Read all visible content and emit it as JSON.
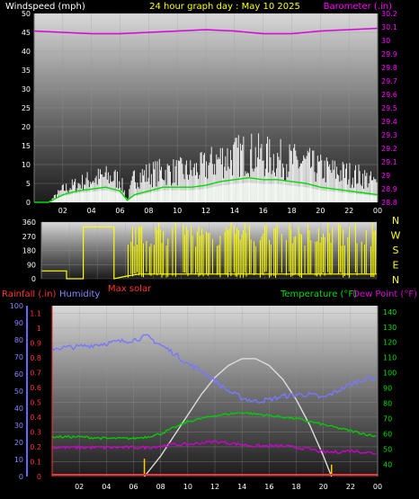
{
  "header": {
    "left_label": "Windspeed (mph)",
    "center_label": "24 hour graph day : May 10 2025",
    "right_label": "Barometer (.in)"
  },
  "colors": {
    "wind": "#ffffff",
    "gust": "#ffffff",
    "wind_avg": "#00dd00",
    "wind_fill": "#cceecc",
    "barometer": "#dd00dd",
    "direction": "#ffff00",
    "solar_max": "#ff3333",
    "rain_axis": "#ff3333",
    "humidity": "#7777ff",
    "temperature": "#00cc00",
    "dewpoint": "#cc00cc",
    "solar": "#dddddd",
    "compass_text": "#ffff00",
    "label_yellow": "#ffff00",
    "tick_text": "#ffffff"
  },
  "chart_data": [
    {
      "type": "line",
      "name": "wind-barometer",
      "x_ticks": [
        "02",
        "04",
        "06",
        "08",
        "10",
        "12",
        "14",
        "16",
        "18",
        "20",
        "22",
        "00"
      ],
      "ylim_left": [
        0,
        50
      ],
      "yticks_left": [
        "0",
        "5",
        "10",
        "15",
        "20",
        "25",
        "30",
        "35",
        "40",
        "45",
        "50"
      ],
      "ylim_right": [
        28.8,
        30.2
      ],
      "yticks_right": [
        "28.8",
        "28.9",
        "29",
        "29.1",
        "29.2",
        "29.3",
        "29.4",
        "29.5",
        "29.6",
        "29.7",
        "29.8",
        "29.9",
        "30",
        "30.1",
        "30.2"
      ],
      "barometer": {
        "x": [
          0,
          2,
          4,
          6,
          8,
          10,
          12,
          14,
          16,
          18,
          20,
          22,
          24
        ],
        "y": [
          30.07,
          30.06,
          30.05,
          30.05,
          30.06,
          30.07,
          30.08,
          30.07,
          30.05,
          30.05,
          30.07,
          30.08,
          30.09
        ]
      },
      "gust_envelope": {
        "x": [
          0,
          1,
          2,
          3,
          4,
          5,
          6,
          6.5,
          7,
          8,
          9,
          10,
          11,
          12,
          13,
          14,
          15,
          16,
          17,
          18,
          19,
          20,
          21,
          22,
          23,
          24
        ],
        "y": [
          0,
          0,
          5,
          7,
          9,
          10,
          9,
          1,
          10,
          11,
          12,
          12,
          12,
          14,
          17,
          18,
          19,
          18,
          17,
          16,
          15,
          13,
          12,
          11,
          10,
          7
        ]
      },
      "wind_avg": {
        "x": [
          0,
          1,
          2,
          3,
          4,
          5,
          6,
          6.5,
          7,
          8,
          9,
          10,
          11,
          12,
          13,
          14,
          15,
          16,
          17,
          18,
          19,
          20,
          21,
          22,
          23,
          24
        ],
        "y": [
          0,
          0,
          2,
          3,
          3.5,
          4,
          3,
          0.5,
          2,
          3,
          4,
          4,
          4,
          4.5,
          5.5,
          6,
          6.5,
          6,
          6,
          5.5,
          5,
          4,
          3.5,
          3,
          2.5,
          2
        ]
      }
    },
    {
      "type": "line",
      "name": "wind-direction",
      "ylim": [
        0,
        360
      ],
      "yticks": [
        "0",
        "90",
        "180",
        "270",
        "360"
      ],
      "compass": [
        "N",
        "W",
        "S",
        "E",
        "N"
      ],
      "x_ticks": [
        "02",
        "04",
        "06",
        "08",
        "10",
        "12",
        "14",
        "16",
        "18",
        "20",
        "22",
        "00"
      ],
      "solar_max_label": "Max solar",
      "direction_sketch": {
        "x": [
          0,
          1.8,
          1.8,
          3.0,
          3.0,
          5.2,
          5.2,
          6.0,
          7.0,
          24
        ],
        "y": [
          50,
          50,
          0,
          0,
          330,
          330,
          0,
          15,
          30,
          30
        ]
      }
    },
    {
      "type": "line",
      "name": "temperature-humidity",
      "rain_label": "Rainfall (.in)",
      "humidity_label": "Humidity",
      "temp_label": "Temperature (°F)",
      "dew_label": "Dew Point (°F)",
      "x_ticks": [
        "02",
        "04",
        "06",
        "08",
        "10",
        "12",
        "14",
        "16",
        "18",
        "20",
        "22",
        "00"
      ],
      "humidity_ticks": [
        "0",
        "10",
        "20",
        "30",
        "40",
        "50",
        "60",
        "70",
        "80",
        "90",
        "100"
      ],
      "rain_ticks": [
        "0",
        "0.1",
        "0.2",
        "0.3",
        "0.4",
        "0.5",
        "0.6",
        "0.7",
        "0.8",
        "0.9",
        "1",
        "1.1"
      ],
      "temp_ticks": [
        "40",
        "50",
        "60",
        "70",
        "80",
        "90",
        "100",
        "110",
        "120",
        "130",
        "140"
      ],
      "ylim_humidity": [
        0,
        100
      ],
      "ylim_temp": [
        32,
        144
      ],
      "humidity": {
        "x": [
          0,
          2,
          4,
          6,
          7,
          8,
          9,
          10,
          11,
          12,
          13,
          14,
          15,
          16,
          17,
          18,
          19,
          20,
          21,
          22,
          23,
          24
        ],
        "y": [
          75,
          76,
          78,
          80,
          82,
          77,
          72,
          66,
          62,
          56,
          50,
          46,
          44,
          45,
          47,
          48,
          48,
          46,
          50,
          54,
          57,
          58
        ]
      },
      "temperature": {
        "x": [
          0,
          2,
          4,
          6,
          7,
          8,
          9,
          10,
          11,
          12,
          13,
          14,
          15,
          16,
          17,
          18,
          19,
          20,
          21,
          22,
          23,
          24
        ],
        "y": [
          58,
          58,
          57,
          57,
          58,
          60,
          64,
          68,
          70,
          72,
          73,
          74,
          73,
          72,
          71,
          70,
          68,
          66,
          64,
          62,
          60,
          58
        ]
      },
      "dewpoint": {
        "x": [
          0,
          2,
          4,
          6,
          7,
          8,
          9,
          10,
          11,
          12,
          13,
          14,
          15,
          16,
          17,
          18,
          19,
          20,
          21,
          22,
          23,
          24
        ],
        "y": [
          51,
          51,
          51,
          51,
          51,
          52,
          53,
          53,
          54,
          55,
          54,
          53,
          52,
          52,
          52,
          51,
          50,
          48,
          48,
          49,
          48,
          47
        ]
      },
      "solar": {
        "x": [
          6.8,
          8,
          9,
          10,
          11,
          12,
          13,
          14,
          15,
          16,
          17,
          18,
          19,
          20,
          20.6
        ],
        "y": [
          0,
          12,
          24,
          36,
          48,
          58,
          65,
          69,
          69,
          65,
          57,
          45,
          30,
          12,
          0
        ]
      },
      "rain_marks": {
        "x": [
          6.8,
          20.6
        ],
        "y": [
          0.12,
          0.08
        ]
      }
    }
  ]
}
